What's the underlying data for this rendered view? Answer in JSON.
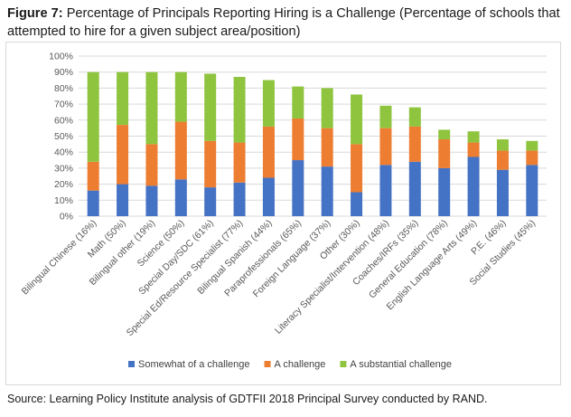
{
  "title": {
    "label": "Figure 7:",
    "text": "Percentage of Principals Reporting Hiring is a Challenge (Percentage of schools that attempted to hire for a given subject area/position)"
  },
  "source": "Source: Learning Policy Institute analysis of GDTFII 2018 Principal Survey conducted by RAND.",
  "chart_data": {
    "type": "bar",
    "stacked": true,
    "title": "",
    "xlabel": "",
    "ylabel": "",
    "ylim": [
      0,
      100
    ],
    "yticks": [
      0,
      10,
      20,
      30,
      40,
      50,
      60,
      70,
      80,
      90,
      100
    ],
    "ytick_labels": [
      "0%",
      "10%",
      "20%",
      "30%",
      "40%",
      "50%",
      "60%",
      "70%",
      "80%",
      "90%",
      "100%"
    ],
    "grid": true,
    "legend_position": "bottom",
    "categories": [
      "Bilingual Chinese (16%)",
      "Math (50%)",
      "Bilingual other (19%)",
      "Science (50%)",
      "Special Day/SDC (61%)",
      "Special Ed/Resource Specialist (77%)",
      "Bilingual Spanish (44%)",
      "Paraprofessionals (65%)",
      "Foreign Language (37%)",
      "Other (30%)",
      "Literacy Specialist/Intervention (48%)",
      "Coaches/IRFs (35%)",
      "General Education (78%)",
      "English Language Arts (49%)",
      "P.E. (46%)",
      "Social Studies (45%)"
    ],
    "series": [
      {
        "name": "Somewhat of a challenge",
        "color": "#4472c4",
        "values": [
          16,
          20,
          19,
          23,
          18,
          21,
          24,
          35,
          31,
          15,
          32,
          34,
          30,
          37,
          29,
          32
        ]
      },
      {
        "name": "A challenge",
        "color": "#ed7d31",
        "values": [
          18,
          37,
          26,
          36,
          29,
          25,
          32,
          26,
          24,
          30,
          23,
          22,
          18,
          9,
          12,
          9
        ]
      },
      {
        "name": "A substantial challenge",
        "color": "#8fc43f",
        "values": [
          56,
          33,
          45,
          31,
          42,
          41,
          29,
          20,
          25,
          31,
          14,
          12,
          6,
          7,
          7,
          6
        ]
      }
    ]
  }
}
